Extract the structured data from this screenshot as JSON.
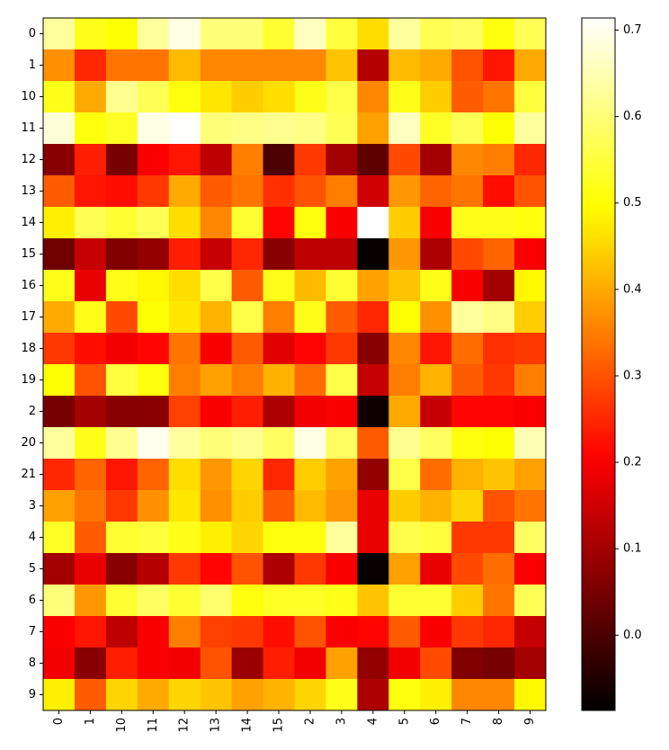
{
  "chart_data": {
    "type": "heatmap",
    "x": [
      "0",
      "1",
      "10",
      "11",
      "12",
      "13",
      "14",
      "15",
      "2",
      "3",
      "4",
      "5",
      "6",
      "7",
      "8",
      "9"
    ],
    "y": [
      "0",
      "1",
      "10",
      "11",
      "12",
      "13",
      "14",
      "15",
      "16",
      "17",
      "18",
      "19",
      "2",
      "20",
      "21",
      "3",
      "4",
      "5",
      "6",
      "7",
      "8",
      "9"
    ],
    "values": [
      [
        0.63,
        0.52,
        0.5,
        0.63,
        0.69,
        0.6,
        0.6,
        0.54,
        0.66,
        0.55,
        0.46,
        0.63,
        0.57,
        0.58,
        0.51,
        0.57
      ],
      [
        0.37,
        0.25,
        0.34,
        0.34,
        0.42,
        0.36,
        0.36,
        0.36,
        0.36,
        0.43,
        0.12,
        0.42,
        0.4,
        0.3,
        0.23,
        0.4
      ],
      [
        0.52,
        0.4,
        0.62,
        0.57,
        0.51,
        0.47,
        0.44,
        0.46,
        0.52,
        0.56,
        0.36,
        0.52,
        0.44,
        0.31,
        0.34,
        0.55
      ],
      [
        0.68,
        0.51,
        0.53,
        0.69,
        0.71,
        0.6,
        0.61,
        0.62,
        0.61,
        0.57,
        0.39,
        0.66,
        0.53,
        0.57,
        0.5,
        0.63
      ],
      [
        0.07,
        0.24,
        0.05,
        0.2,
        0.23,
        0.13,
        0.35,
        0.0,
        0.27,
        0.1,
        0.02,
        0.29,
        0.1,
        0.36,
        0.35,
        0.25
      ],
      [
        0.31,
        0.23,
        0.22,
        0.27,
        0.4,
        0.31,
        0.34,
        0.26,
        0.3,
        0.35,
        0.15,
        0.38,
        0.32,
        0.34,
        0.22,
        0.3
      ],
      [
        0.48,
        0.57,
        0.54,
        0.57,
        0.46,
        0.36,
        0.54,
        0.21,
        0.51,
        0.2,
        0.714,
        0.44,
        0.2,
        0.52,
        0.52,
        0.51
      ],
      [
        0.04,
        0.14,
        0.06,
        0.08,
        0.24,
        0.14,
        0.25,
        0.07,
        0.13,
        0.13,
        -0.08,
        0.38,
        0.11,
        0.29,
        0.32,
        0.2
      ],
      [
        0.52,
        0.18,
        0.52,
        0.49,
        0.46,
        0.56,
        0.31,
        0.52,
        0.42,
        0.54,
        0.39,
        0.43,
        0.52,
        0.2,
        0.1,
        0.49
      ],
      [
        0.4,
        0.52,
        0.29,
        0.5,
        0.47,
        0.41,
        0.56,
        0.35,
        0.52,
        0.31,
        0.25,
        0.5,
        0.37,
        0.63,
        0.61,
        0.44
      ],
      [
        0.27,
        0.22,
        0.19,
        0.21,
        0.34,
        0.2,
        0.31,
        0.17,
        0.21,
        0.27,
        0.07,
        0.36,
        0.23,
        0.33,
        0.26,
        0.27
      ],
      [
        0.5,
        0.3,
        0.55,
        0.51,
        0.35,
        0.39,
        0.35,
        0.41,
        0.33,
        0.56,
        0.14,
        0.35,
        0.41,
        0.31,
        0.27,
        0.35
      ],
      [
        0.05,
        0.1,
        0.07,
        0.07,
        0.28,
        0.2,
        0.24,
        0.11,
        0.19,
        0.2,
        -0.07,
        0.4,
        0.14,
        0.21,
        0.21,
        0.2
      ],
      [
        0.63,
        0.52,
        0.62,
        0.7,
        0.63,
        0.6,
        0.62,
        0.58,
        0.69,
        0.58,
        0.31,
        0.62,
        0.58,
        0.51,
        0.5,
        0.65
      ],
      [
        0.25,
        0.32,
        0.23,
        0.32,
        0.46,
        0.38,
        0.45,
        0.25,
        0.44,
        0.39,
        0.08,
        0.56,
        0.33,
        0.41,
        0.43,
        0.39
      ],
      [
        0.39,
        0.34,
        0.27,
        0.37,
        0.47,
        0.37,
        0.44,
        0.31,
        0.42,
        0.38,
        0.18,
        0.44,
        0.41,
        0.45,
        0.3,
        0.34
      ],
      [
        0.53,
        0.31,
        0.54,
        0.55,
        0.52,
        0.48,
        0.45,
        0.51,
        0.51,
        0.63,
        0.18,
        0.56,
        0.55,
        0.27,
        0.27,
        0.58
      ],
      [
        0.1,
        0.18,
        0.07,
        0.12,
        0.27,
        0.21,
        0.3,
        0.11,
        0.27,
        0.2,
        -0.08,
        0.39,
        0.18,
        0.29,
        0.33,
        0.2
      ],
      [
        0.6,
        0.38,
        0.54,
        0.58,
        0.54,
        0.59,
        0.51,
        0.53,
        0.53,
        0.52,
        0.43,
        0.54,
        0.54,
        0.44,
        0.34,
        0.57
      ],
      [
        0.2,
        0.23,
        0.13,
        0.2,
        0.35,
        0.28,
        0.27,
        0.22,
        0.3,
        0.2,
        0.21,
        0.31,
        0.2,
        0.27,
        0.25,
        0.14
      ],
      [
        0.19,
        0.07,
        0.24,
        0.2,
        0.19,
        0.3,
        0.09,
        0.24,
        0.19,
        0.39,
        0.08,
        0.19,
        0.29,
        0.06,
        0.05,
        0.1
      ],
      [
        0.48,
        0.31,
        0.45,
        0.4,
        0.45,
        0.43,
        0.39,
        0.41,
        0.45,
        0.52,
        0.11,
        0.51,
        0.48,
        0.36,
        0.36,
        0.49
      ]
    ],
    "colormap": "hot",
    "clim": [
      -0.087,
      0.714
    ],
    "cticks": [
      {
        "value": 0,
        "label": "0.0"
      },
      0.1,
      0.2,
      0.3,
      0.4,
      0.5,
      0.6,
      0.7
    ]
  }
}
